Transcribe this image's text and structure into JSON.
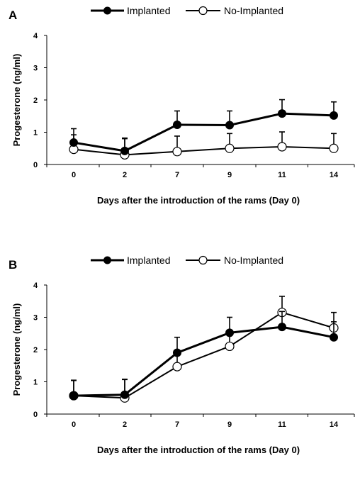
{
  "chart_data": [
    {
      "type": "line",
      "panel_label": "A",
      "categories": [
        "0",
        "2",
        "7",
        "9",
        "11",
        "14"
      ],
      "series": [
        {
          "name": "Implanted",
          "marker": "filled-circle",
          "values": [
            0.68,
            0.42,
            1.23,
            1.22,
            1.58,
            1.52
          ],
          "error": [
            0.43,
            0.4,
            0.43,
            0.44,
            0.43,
            0.42
          ]
        },
        {
          "name": "No-Implanted",
          "marker": "open-circle",
          "values": [
            0.47,
            0.3,
            0.4,
            0.5,
            0.55,
            0.5
          ],
          "error": [
            0.45,
            0.5,
            0.48,
            0.46,
            0.46,
            0.46
          ]
        }
      ],
      "xlabel": "Days after the introduction  of the rams  (Day 0)",
      "ylabel": "Progesterone  (ng/ml)",
      "ylim": [
        0,
        4
      ],
      "yticks": [
        "0",
        "1",
        "2",
        "3",
        "4"
      ],
      "grid": false,
      "legend_position": "top"
    },
    {
      "type": "line",
      "panel_label": "B",
      "categories": [
        "0",
        "2",
        "7",
        "9",
        "11",
        "14"
      ],
      "series": [
        {
          "name": "Implanted",
          "marker": "filled-circle",
          "values": [
            0.57,
            0.6,
            1.9,
            2.52,
            2.7,
            2.38
          ],
          "error": [
            0.47,
            0.48,
            0.48,
            0.48,
            0.48,
            0.48
          ]
        },
        {
          "name": "No-Implanted",
          "marker": "open-circle",
          "values": [
            0.57,
            0.5,
            1.47,
            2.1,
            3.15,
            2.67
          ],
          "error": [
            0.48,
            0.57,
            0.48,
            0.48,
            0.5,
            0.48
          ]
        }
      ],
      "xlabel": "Days after the introduction  of the rams (Day 0)",
      "ylabel": "Progesterone  (ng/ml)",
      "ylim": [
        0,
        4
      ],
      "yticks": [
        "0",
        "1",
        "2",
        "3",
        "4"
      ],
      "grid": false,
      "legend_position": "top"
    }
  ]
}
